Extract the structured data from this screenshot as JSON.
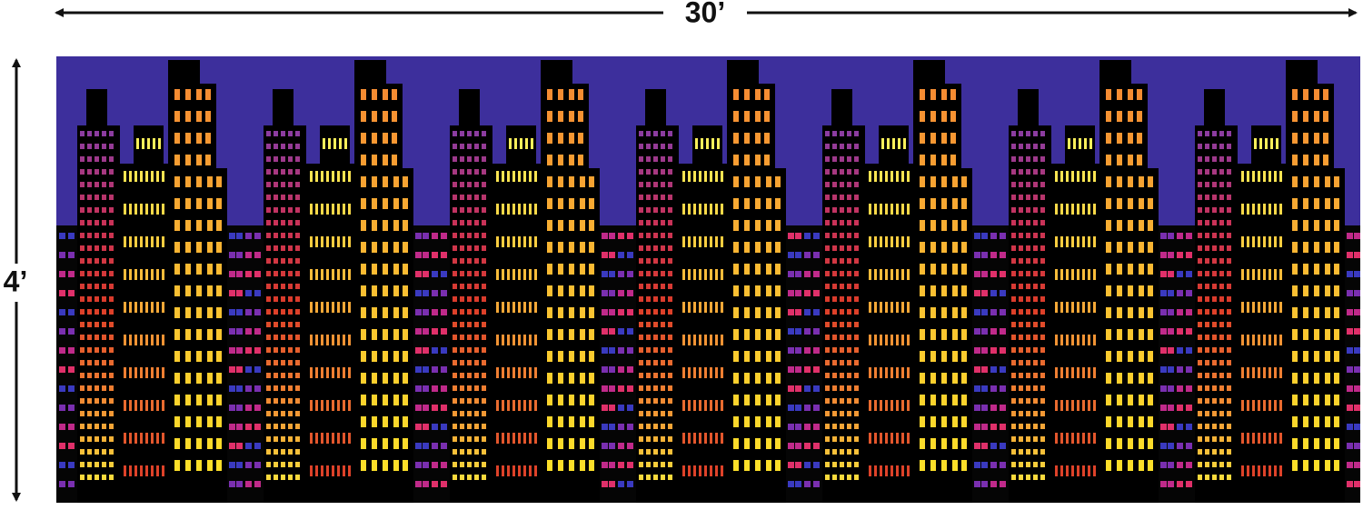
{
  "dimensions": {
    "width": "30’",
    "height": "4’"
  }
}
